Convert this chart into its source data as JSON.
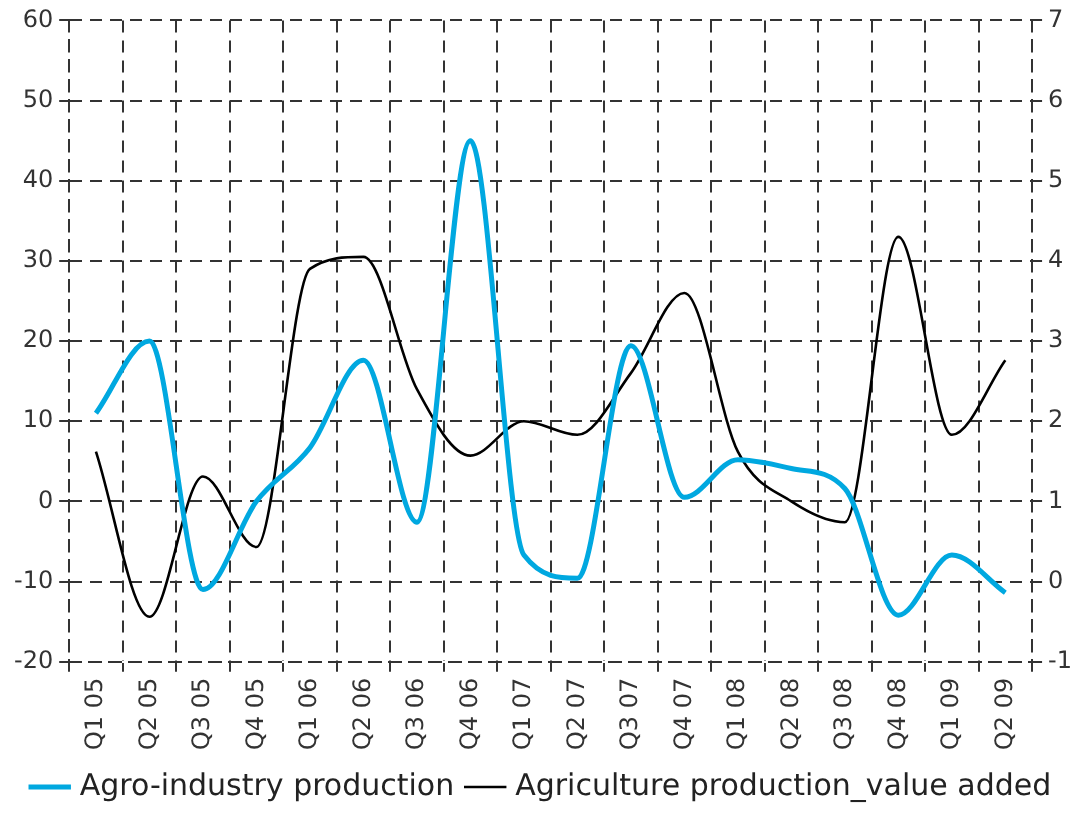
{
  "chart_data": {
    "type": "line",
    "categories": [
      "Q1 05",
      "Q2 05",
      "Q3 05",
      "Q4 05",
      "Q1 06",
      "Q2 06",
      "Q3 06",
      "Q4 06",
      "Q1 07",
      "Q2 07",
      "Q3 07",
      "Q4 07",
      "Q1 08",
      "Q2 08",
      "Q3 08",
      "Q4 08",
      "Q1 09",
      "Q2 09"
    ],
    "series": [
      {
        "name": "Agro-industry production",
        "color": "#00a8e0",
        "values": [
          11,
          20,
          -11,
          0,
          6.7,
          17.6,
          -2.6,
          45,
          -6.7,
          -9.6,
          19.4,
          0.5,
          5.2,
          4.1,
          1.6,
          -14.2,
          -6.7,
          -11.4
        ]
      },
      {
        "name": "Agriculture production_value added",
        "color": "#000000",
        "axis": "y2",
        "values": [
          1.62,
          -0.44,
          1.31,
          0.43,
          3.9,
          4.05,
          2.4,
          1.57,
          2.0,
          1.83,
          2.6,
          3.6,
          1.62,
          1.0,
          0.74,
          4.3,
          1.83,
          2.76
        ]
      }
    ],
    "ylim": [
      -20,
      60
    ],
    "yticks": [
      -20,
      -10,
      0,
      10,
      20,
      30,
      40,
      50,
      60
    ],
    "y2lim": [
      -1,
      7
    ],
    "y2ticks": [
      -1,
      0,
      1,
      2,
      3,
      4,
      5,
      6,
      7
    ],
    "grid": true,
    "legend": "bottom",
    "marker": "none",
    "line_style": "solid"
  }
}
